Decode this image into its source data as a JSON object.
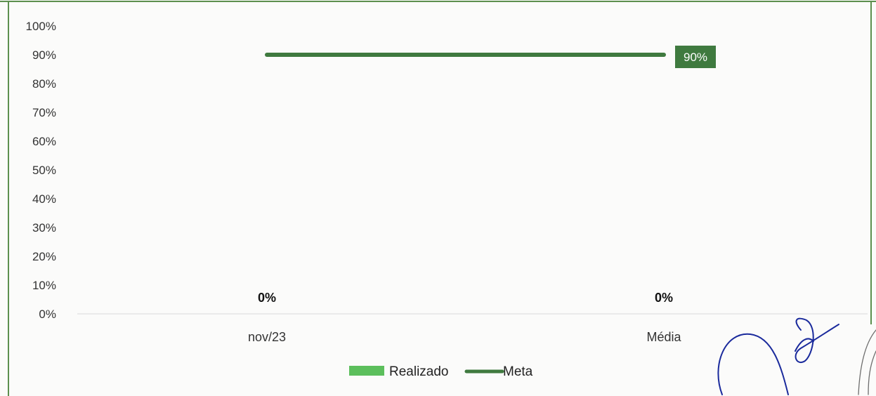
{
  "colors": {
    "frame": "#5c8f4e",
    "realizado": "#5cbf5c",
    "meta": "#3f7a3f",
    "axis": "#d9d9d9",
    "text": "#333333",
    "signature_blue": "#1a2a9c",
    "signature_gray": "#6e6e6e"
  },
  "chart_data": {
    "type": "bar",
    "title": "",
    "xlabel": "",
    "ylabel": "",
    "categories": [
      "nov/23",
      "Média"
    ],
    "ylim": [
      0,
      1
    ],
    "yticks": [
      0,
      0.1,
      0.2,
      0.3,
      0.4,
      0.5,
      0.6,
      0.7,
      0.8,
      0.9,
      1.0
    ],
    "ytick_labels": [
      "0%",
      "10%",
      "20%",
      "30%",
      "40%",
      "50%",
      "60%",
      "70%",
      "80%",
      "90%",
      "100%"
    ],
    "grid": false,
    "legend_position": "bottom",
    "series": [
      {
        "name": "Realizado",
        "type": "bar",
        "color": "#5cbf5c",
        "values": [
          0,
          0
        ],
        "labels": [
          "0%",
          "0%"
        ]
      },
      {
        "name": "Meta",
        "type": "line",
        "color": "#3f7a3f",
        "values": [
          0.9,
          0.9
        ],
        "end_label": "90%"
      }
    ]
  }
}
